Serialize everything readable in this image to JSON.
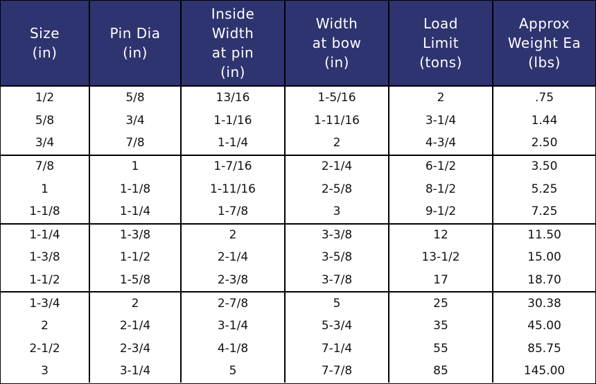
{
  "table": {
    "header": [
      [
        "Size",
        "(in)"
      ],
      [
        "Pin Dia",
        "(in)"
      ],
      [
        "Inside",
        "Width",
        "at pin",
        "(in)"
      ],
      [
        "Width",
        "at bow",
        "(in)"
      ],
      [
        "Load",
        "Limit",
        "(tons)"
      ],
      [
        "Approx",
        "Weight Ea",
        "(lbs)"
      ]
    ],
    "groups": [
      [
        [
          "1/2",
          "5/8",
          "13/16",
          "1-5/16",
          "2",
          ".75"
        ],
        [
          "5/8",
          "3/4",
          "1-1/16",
          "1-11/16",
          "3-1/4",
          "1.44"
        ],
        [
          "3/4",
          "7/8",
          "1-1/4",
          "2",
          "4-3/4",
          "2.50"
        ]
      ],
      [
        [
          "7/8",
          "1",
          "1-7/16",
          "2-1/4",
          "6-1/2",
          "3.50"
        ],
        [
          "1",
          "1-1/8",
          "1-11/16",
          "2-5/8",
          "8-1/2",
          "5.25"
        ],
        [
          "1-1/8",
          "1-1/4",
          "1-7/8",
          "3",
          "9-1/2",
          "7.25"
        ]
      ],
      [
        [
          "1-1/4",
          "1-3/8",
          "2",
          "3-3/8",
          "12",
          "11.50"
        ],
        [
          "1-3/8",
          "1-1/2",
          "2-1/4",
          "3-5/8",
          "13-1/2",
          "15.00"
        ],
        [
          "1-1/2",
          "1-5/8",
          "2-3/8",
          "3-7/8",
          "17",
          "18.70"
        ]
      ],
      [
        [
          "1-3/4",
          "2",
          "2-7/8",
          "5",
          "25",
          "30.38"
        ],
        [
          "2",
          "2-1/4",
          "3-1/4",
          "5-3/4",
          "35",
          "45.00"
        ],
        [
          "2-1/2",
          "2-3/4",
          "4-1/8",
          "7-1/4",
          "55",
          "85.75"
        ],
        [
          "3",
          "3-1/4",
          "5",
          "7-7/8",
          "85",
          "145.00"
        ]
      ]
    ]
  }
}
